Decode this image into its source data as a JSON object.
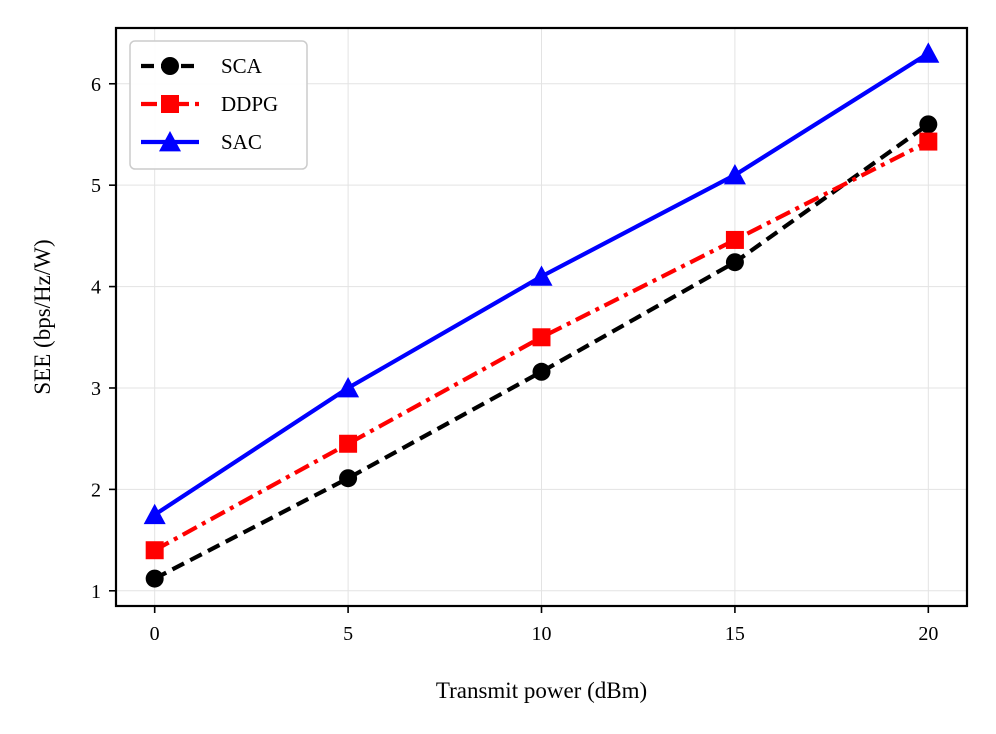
{
  "chart_data": {
    "type": "line",
    "title": "",
    "xlabel": "Transmit power (dBm)",
    "ylabel": "SEE (bps/Hz/W)",
    "x": [
      0,
      5,
      10,
      15,
      20
    ],
    "xlim": [
      -1,
      21
    ],
    "ylim": [
      0.85,
      6.55
    ],
    "xticks": [
      0,
      5,
      10,
      15,
      20
    ],
    "yticks": [
      1,
      2,
      3,
      4,
      5,
      6
    ],
    "xtick_labels": [
      "0",
      "5",
      "10",
      "15",
      "20"
    ],
    "ytick_labels": [
      "1",
      "2",
      "3",
      "4",
      "5",
      "6"
    ],
    "grid": true,
    "legend_position": "top-left",
    "series": [
      {
        "name": "SCA",
        "values": [
          1.12,
          2.11,
          3.16,
          4.24,
          5.6
        ],
        "color": "#000000",
        "line_style": "dashed",
        "marker": "circle"
      },
      {
        "name": "DDPG",
        "values": [
          1.4,
          2.45,
          3.5,
          4.46,
          5.43
        ],
        "color": "#ff0000",
        "line_style": "dash-dot",
        "marker": "square"
      },
      {
        "name": "SAC",
        "values": [
          1.75,
          3.0,
          4.1,
          5.1,
          6.3
        ],
        "color": "#0000ff",
        "line_style": "solid",
        "marker": "triangle"
      }
    ]
  }
}
